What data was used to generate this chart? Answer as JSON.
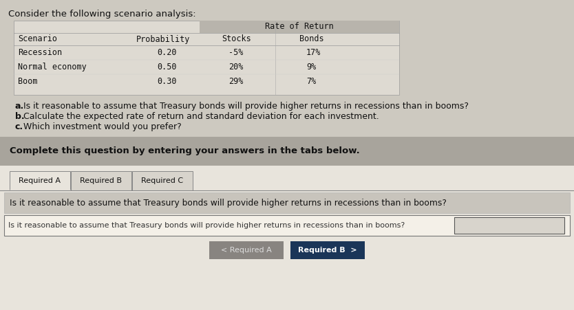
{
  "title": "Consider the following scenario analysis:",
  "bg_color": "#cdc9c0",
  "table_subheader": [
    "Scenario",
    "Probability",
    "Stocks",
    "Bonds"
  ],
  "table_rows": [
    [
      "Recession",
      "0.20",
      "-5%",
      "17%"
    ],
    [
      "Normal economy",
      "0.50",
      "20%",
      "9%"
    ],
    [
      "Boom",
      "0.30",
      "29%",
      "7%"
    ]
  ],
  "table_bg": "#dedad2",
  "table_header_bg": "#b8b4ac",
  "questions": [
    [
      "a",
      "Is it reasonable to assume that Treasury bonds will provide higher returns in recessions than in booms?"
    ],
    [
      "b",
      "Calculate the expected rate of return and standard deviation for each investment."
    ],
    [
      "c",
      "Which investment would you prefer?"
    ]
  ],
  "complete_text": "Complete this question by entering your answers in the tabs below.",
  "complete_bg": "#a8a49c",
  "tab_labels": [
    "Required A",
    "Required B",
    "Required C"
  ],
  "active_tab": 0,
  "tab_area_bg": "#e8e4dc",
  "section_label_text": "Is it reasonable to assume that Treasury bonds will provide higher returns in recessions than in booms?",
  "section_label_bg": "#c8c4bc",
  "answer_box_text": "Is it reasonable to assume that Treasury bonds will provide higher returns in recessions than in booms?",
  "answer_box_bg": "#f4f0e8",
  "btn_left_text": "< Required A",
  "btn_left_bg": "#888480",
  "btn_right_text": "Required B  >",
  "btn_right_bg": "#1a3558",
  "btn_right_text_color": "#ffffff",
  "btn_left_text_color": "#dddddd"
}
